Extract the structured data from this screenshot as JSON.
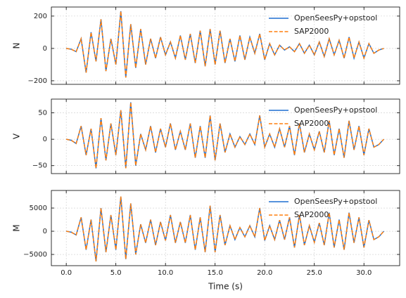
{
  "chart_data": [
    {
      "type": "line",
      "ylabel": "N",
      "legend": "upper right",
      "grid": true,
      "x": [
        0,
        0.5,
        1,
        1.5,
        2,
        2.5,
        3,
        3.5,
        4,
        4.5,
        5,
        5.5,
        6,
        6.5,
        7,
        7.5,
        8,
        8.5,
        9,
        9.5,
        10,
        10.5,
        11,
        11.5,
        12,
        12.5,
        13,
        13.5,
        14,
        14.5,
        15,
        15.5,
        16,
        16.5,
        17,
        17.5,
        18,
        18.5,
        19,
        19.5,
        20,
        20.5,
        21,
        21.5,
        22,
        22.5,
        23,
        23.5,
        24,
        24.5,
        25,
        25.5,
        26,
        26.5,
        27,
        27.5,
        28,
        28.5,
        29,
        29.5,
        30,
        30.5,
        31,
        31.5,
        32
      ],
      "xlim": [
        -1.5,
        33.6
      ],
      "xticks": [
        0,
        5,
        10,
        15,
        20,
        25,
        30
      ],
      "ylim": [
        -222,
        256
      ],
      "yticks": [
        {
          "value": -200,
          "label": "−200"
        },
        0,
        200
      ],
      "series": [
        {
          "name": "OpenSeesPy+opstool",
          "color": "#1f6fd0",
          "dash": "solid",
          "values": [
            0,
            -5,
            -20,
            60,
            -150,
            100,
            -80,
            180,
            -140,
            60,
            -100,
            230,
            -180,
            150,
            -120,
            120,
            -100,
            60,
            -60,
            70,
            -40,
            40,
            -60,
            80,
            -70,
            90,
            -90,
            110,
            -110,
            120,
            -100,
            110,
            -90,
            60,
            -80,
            80,
            -70,
            70,
            -30,
            90,
            -70,
            30,
            -40,
            20,
            -10,
            10,
            -20,
            30,
            -30,
            20,
            -40,
            40,
            -50,
            60,
            -40,
            50,
            -60,
            70,
            -60,
            40,
            -60,
            30,
            -30,
            -10,
            0
          ]
        },
        {
          "name": "SAP2000",
          "color": "#ff7f0e",
          "dash": "dashed",
          "values": [
            0,
            -5,
            -20,
            60,
            -150,
            100,
            -80,
            180,
            -140,
            60,
            -100,
            230,
            -180,
            150,
            -120,
            120,
            -100,
            60,
            -60,
            70,
            -40,
            40,
            -60,
            80,
            -70,
            90,
            -90,
            110,
            -110,
            120,
            -100,
            110,
            -90,
            60,
            -80,
            80,
            -70,
            70,
            -30,
            90,
            -70,
            30,
            -40,
            20,
            -10,
            10,
            -20,
            30,
            -30,
            20,
            -40,
            40,
            -50,
            60,
            -40,
            50,
            -60,
            70,
            -60,
            40,
            -60,
            30,
            -30,
            -10,
            0
          ]
        }
      ]
    },
    {
      "type": "line",
      "ylabel": "V",
      "legend": "upper right",
      "grid": true,
      "x": [
        0,
        0.5,
        1,
        1.5,
        2,
        2.5,
        3,
        3.5,
        4,
        4.5,
        5,
        5.5,
        6,
        6.5,
        7,
        7.5,
        8,
        8.5,
        9,
        9.5,
        10,
        10.5,
        11,
        11.5,
        12,
        12.5,
        13,
        13.5,
        14,
        14.5,
        15,
        15.5,
        16,
        16.5,
        17,
        17.5,
        18,
        18.5,
        19,
        19.5,
        20,
        20.5,
        21,
        21.5,
        22,
        22.5,
        23,
        23.5,
        24,
        24.5,
        25,
        25.5,
        26,
        26.5,
        27,
        27.5,
        28,
        28.5,
        29,
        29.5,
        30,
        30.5,
        31,
        31.5,
        32
      ],
      "xlim": [
        -1.5,
        33.6
      ],
      "xticks": [
        0,
        5,
        10,
        15,
        20,
        25,
        30
      ],
      "ylim": [
        -65,
        76
      ],
      "yticks": [
        {
          "value": -50,
          "label": "−50"
        },
        0,
        50
      ],
      "series": [
        {
          "name": "OpenSeesPy+opstool",
          "color": "#1f6fd0",
          "dash": "solid",
          "values": [
            0,
            -2,
            -8,
            25,
            -30,
            20,
            -55,
            40,
            -40,
            30,
            -30,
            55,
            -55,
            70,
            -50,
            10,
            -20,
            25,
            -25,
            20,
            -15,
            30,
            -20,
            15,
            -20,
            30,
            -35,
            25,
            -35,
            45,
            -40,
            30,
            -25,
            10,
            -15,
            5,
            -10,
            10,
            -10,
            45,
            -15,
            10,
            -15,
            20,
            -15,
            25,
            -30,
            30,
            -25,
            10,
            -20,
            15,
            -25,
            35,
            -30,
            20,
            -35,
            35,
            -20,
            25,
            -30,
            20,
            -15,
            -10,
            0
          ]
        },
        {
          "name": "SAP2000",
          "color": "#ff7f0e",
          "dash": "dashed",
          "values": [
            0,
            -2,
            -8,
            25,
            -30,
            20,
            -55,
            40,
            -40,
            30,
            -30,
            55,
            -55,
            70,
            -50,
            10,
            -20,
            25,
            -25,
            20,
            -15,
            30,
            -20,
            15,
            -20,
            30,
            -35,
            25,
            -35,
            45,
            -40,
            30,
            -25,
            10,
            -15,
            5,
            -10,
            10,
            -10,
            45,
            -15,
            10,
            -15,
            20,
            -15,
            25,
            -30,
            30,
            -25,
            10,
            -20,
            15,
            -25,
            35,
            -30,
            20,
            -35,
            35,
            -20,
            25,
            -30,
            20,
            -15,
            -10,
            0
          ]
        }
      ]
    },
    {
      "type": "line",
      "ylabel": "M",
      "xlabel": "Time (s)",
      "legend": "upper right",
      "grid": true,
      "x": [
        0,
        0.5,
        1,
        1.5,
        2,
        2.5,
        3,
        3.5,
        4,
        4.5,
        5,
        5.5,
        6,
        6.5,
        7,
        7.5,
        8,
        8.5,
        9,
        9.5,
        10,
        10.5,
        11,
        11.5,
        12,
        12.5,
        13,
        13.5,
        14,
        14.5,
        15,
        15.5,
        16,
        16.5,
        17,
        17.5,
        18,
        18.5,
        19,
        19.5,
        20,
        20.5,
        21,
        21.5,
        22,
        22.5,
        23,
        23.5,
        24,
        24.5,
        25,
        25.5,
        26,
        26.5,
        27,
        27.5,
        28,
        28.5,
        29,
        29.5,
        30,
        30.5,
        31,
        31.5,
        32
      ],
      "xlim": [
        -1.5,
        33.6
      ],
      "xticks": [
        {
          "value": 0,
          "label": "0.0"
        },
        {
          "value": 5,
          "label": "5.0"
        },
        {
          "value": 10,
          "label": "10.0"
        },
        {
          "value": 15,
          "label": "15.0"
        },
        {
          "value": 20,
          "label": "20.0"
        },
        {
          "value": 25,
          "label": "25.0"
        },
        {
          "value": 30,
          "label": "30.0"
        }
      ],
      "ylim": [
        -7420,
        8790
      ],
      "yticks": [
        {
          "value": -5000,
          "label": "−5000"
        },
        0,
        5000
      ],
      "series": [
        {
          "name": "OpenSeesPy+opstool",
          "color": "#1f6fd0",
          "dash": "solid",
          "values": [
            0,
            -200,
            -800,
            3000,
            -4000,
            2500,
            -6500,
            5000,
            -4500,
            3500,
            -4000,
            7500,
            -6000,
            6000,
            -5000,
            1500,
            -2500,
            2500,
            -3000,
            2000,
            -2000,
            3500,
            -2500,
            2000,
            -2500,
            3500,
            -4000,
            3000,
            -4500,
            5500,
            -4500,
            3500,
            -3000,
            1200,
            -1800,
            800,
            -1200,
            1200,
            -1200,
            5000,
            -2000,
            1200,
            -1800,
            2400,
            -1800,
            3000,
            -3500,
            3500,
            -3000,
            1200,
            -2400,
            1800,
            -3000,
            4000,
            -3500,
            2500,
            -4000,
            4000,
            -2500,
            3000,
            -3500,
            2400,
            -1800,
            -1200,
            0
          ]
        },
        {
          "name": "SAP2000",
          "color": "#ff7f0e",
          "dash": "dashed",
          "values": [
            0,
            -200,
            -800,
            3000,
            -4000,
            2500,
            -6500,
            5000,
            -4500,
            3500,
            -4000,
            7500,
            -6000,
            6000,
            -5000,
            1500,
            -2500,
            2500,
            -3000,
            2000,
            -2000,
            3500,
            -2500,
            2000,
            -2500,
            3500,
            -4000,
            3000,
            -4500,
            5500,
            -4500,
            3500,
            -3000,
            1200,
            -1800,
            800,
            -1200,
            1200,
            -1200,
            5000,
            -2000,
            1200,
            -1800,
            2400,
            -1800,
            3000,
            -3500,
            3500,
            -3000,
            1200,
            -2400,
            1800,
            -3000,
            4000,
            -3500,
            2500,
            -4000,
            4000,
            -2500,
            3000,
            -3500,
            2400,
            -1800,
            -1200,
            0
          ]
        }
      ]
    }
  ]
}
